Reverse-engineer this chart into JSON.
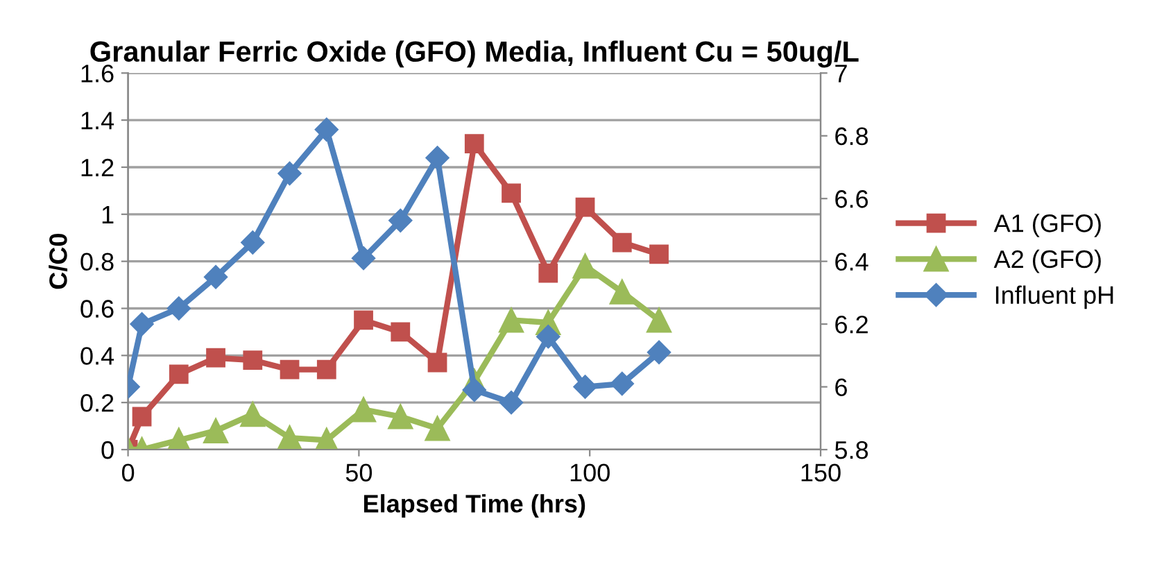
{
  "chart_data": {
    "type": "line",
    "title": "Granular Ferric Oxide (GFO) Media, Influent Cu = 50ug/L",
    "xlabel": "Elapsed Time (hrs)",
    "ylabel": "C/C0",
    "x": [
      0,
      3,
      11,
      19,
      27,
      35,
      43,
      51,
      59,
      67,
      75,
      83,
      91,
      99,
      107,
      115
    ],
    "series": [
      {
        "name": "A1 (GFO)",
        "color": "#c0504d",
        "marker": "square",
        "values": [
          0,
          0.14,
          0.32,
          0.39,
          0.38,
          0.34,
          0.34,
          0.55,
          0.5,
          0.37,
          1.3,
          1.09,
          0.75,
          1.03,
          0.88,
          0.83
        ]
      },
      {
        "name": "A2 (GFO)",
        "color": "#9bbb59",
        "marker": "triangle",
        "values": [
          0,
          0,
          0.04,
          0.08,
          0.15,
          0.05,
          0.04,
          0.17,
          0.14,
          0.09,
          0.29,
          0.55,
          0.54,
          0.78,
          0.67,
          0.55
        ]
      },
      {
        "name": "Influent pH",
        "color": "#4f81bd",
        "marker": "diamond",
        "axis": "y2",
        "values": [
          6.0,
          6.2,
          6.25,
          6.35,
          6.46,
          6.68,
          6.82,
          6.41,
          6.53,
          6.73,
          5.99,
          5.95,
          6.16,
          6.0,
          6.01,
          6.11
        ]
      }
    ],
    "xlim": [
      0,
      150
    ],
    "xticks": [
      0,
      50,
      100,
      150
    ],
    "ylim": [
      0,
      1.6
    ],
    "yticks": [
      0,
      0.2,
      0.4,
      0.6,
      0.8,
      1,
      1.2,
      1.4,
      1.6
    ],
    "y2lim": [
      5.8,
      7
    ],
    "y2ticks": [
      5.8,
      6,
      6.2,
      6.4,
      6.6,
      6.8,
      7
    ],
    "grid": "y",
    "legend": "right"
  }
}
